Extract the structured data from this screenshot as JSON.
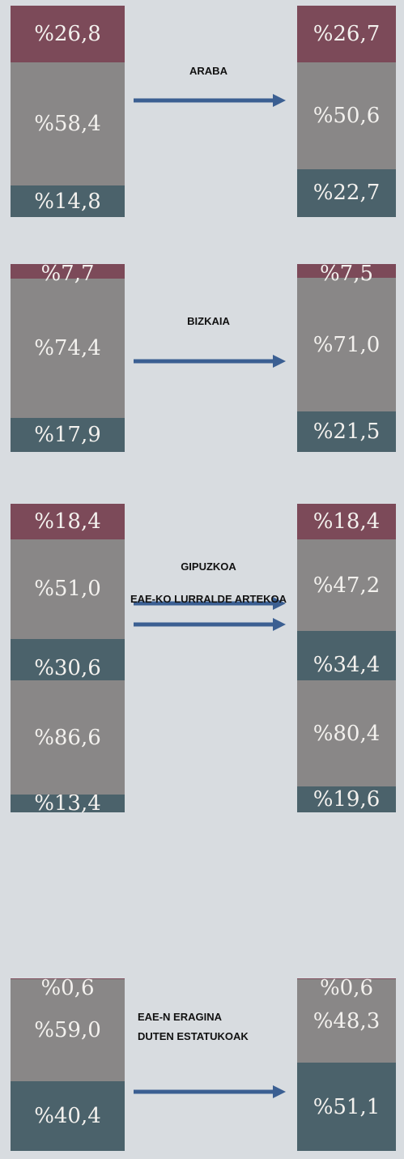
{
  "chart_data": [
    {
      "type": "stacked_bar",
      "title": "ARABA",
      "series": [
        {
          "color": "#4b626b",
          "values": [
            14.8,
            22.7
          ],
          "value_labels": [
            "%14,8",
            "%22,7"
          ]
        },
        {
          "color": "#898787",
          "values": [
            58.4,
            50.6
          ],
          "value_labels": [
            "%58,4",
            "%50,6"
          ]
        },
        {
          "color": "#7c4a59",
          "values": [
            26.8,
            26.7
          ],
          "value_labels": [
            "%26,8",
            "%26,7"
          ]
        }
      ]
    },
    {
      "type": "stacked_bar",
      "title": "BIZKAIA",
      "series": [
        {
          "color": "#4b626b",
          "values": [
            17.9,
            21.5
          ],
          "value_labels": [
            "%17,9",
            "%21,5"
          ]
        },
        {
          "color": "#898787",
          "values": [
            74.4,
            71.0
          ],
          "value_labels": [
            "%74,4",
            "%71,0"
          ]
        },
        {
          "color": "#7c4a59",
          "values": [
            7.7,
            7.5
          ],
          "value_labels": [
            "%7,7",
            "%7,5"
          ]
        }
      ]
    },
    {
      "type": "stacked_bar",
      "title": "GIPUZKOA",
      "series": [
        {
          "color": "#4b626b",
          "values": [
            30.6,
            34.4
          ],
          "value_labels": [
            "%30,6",
            "%34,4"
          ]
        },
        {
          "color": "#898787",
          "values": [
            51.0,
            47.2
          ],
          "value_labels": [
            "%51,0",
            "%47,2"
          ]
        },
        {
          "color": "#7c4a59",
          "values": [
            18.4,
            18.4
          ],
          "value_labels": [
            "%18,4",
            "%18,4"
          ]
        }
      ]
    },
    {
      "type": "stacked_bar",
      "title": "EAE-KO LURRALDE ARTEKOA",
      "series": [
        {
          "color": "#4b626b",
          "values": [
            13.4,
            19.6
          ],
          "value_labels": [
            "%13,4",
            "%19,6"
          ]
        },
        {
          "color": "#898787",
          "values": [
            86.6,
            80.4
          ],
          "value_labels": [
            "%86,6",
            "%80,4"
          ]
        }
      ]
    },
    {
      "type": "stacked_bar",
      "title": "EAE-N ERAGINA DUTEN ESTATUKOAK",
      "series": [
        {
          "color": "#4b626b",
          "values": [
            40.4,
            51.1
          ],
          "value_labels": [
            "%40,4",
            "%51,1"
          ]
        },
        {
          "color": "#898787",
          "values": [
            59.0,
            48.3
          ],
          "value_labels": [
            "%59,0",
            "%48,3"
          ]
        },
        {
          "color": "#7c4a59",
          "values": [
            0.6,
            0.6
          ],
          "value_labels": [
            "%0,6",
            "%0,6"
          ]
        }
      ]
    }
  ]
}
